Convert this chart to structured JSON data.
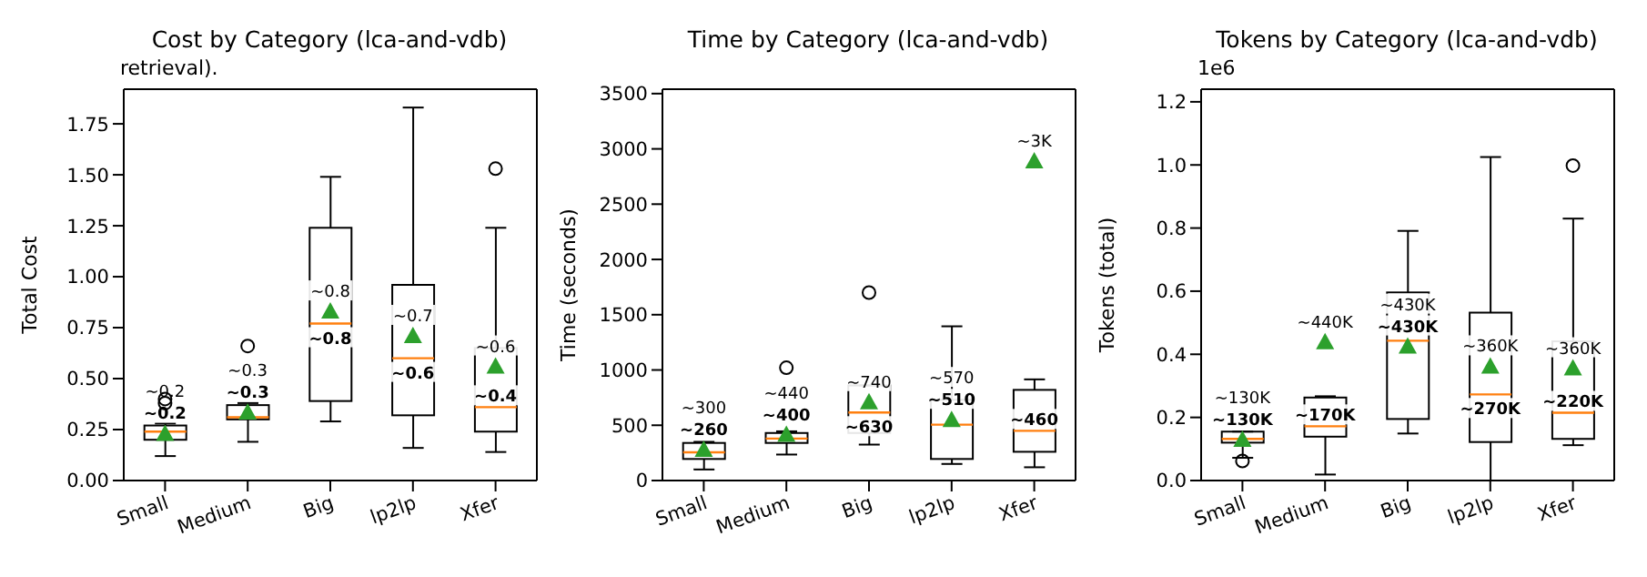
{
  "chart_data": [
    {
      "type": "box",
      "title": "Cost by Category (lca-and-vdb)",
      "ylabel": "Total Cost",
      "marker": "triangle",
      "categories": [
        "Small",
        "Medium",
        "Big",
        "lp2lp",
        "Xfer"
      ],
      "boxes": [
        {
          "low": 0.12,
          "q1": 0.2,
          "median": 0.24,
          "q3": 0.27,
          "high": 0.28,
          "mean": 0.23,
          "outliers": [
            0.38,
            0.4
          ]
        },
        {
          "low": 0.19,
          "q1": 0.3,
          "median": 0.31,
          "q3": 0.37,
          "high": 0.38,
          "mean": 0.335,
          "outliers": [
            0.66
          ]
        },
        {
          "low": 0.29,
          "q1": 0.39,
          "median": 0.77,
          "q3": 1.24,
          "high": 1.49,
          "mean": 0.83
        },
        {
          "low": 0.16,
          "q1": 0.32,
          "median": 0.6,
          "q3": 0.96,
          "high": 1.83,
          "mean": 0.71
        },
        {
          "low": 0.14,
          "q1": 0.24,
          "median": 0.36,
          "q3": 0.65,
          "high": 1.24,
          "mean": 0.56,
          "outliers": [
            1.53
          ]
        }
      ],
      "ylim": [
        0,
        1.92
      ],
      "yticks": [
        {
          "value": 0,
          "label": "0.00"
        },
        {
          "value": 0.25,
          "label": "0.25"
        },
        {
          "value": 0.5,
          "label": "0.50"
        },
        {
          "value": 0.75,
          "label": "0.75"
        },
        {
          "value": 1,
          "label": "1.00"
        },
        {
          "value": 1.25,
          "label": "1.25"
        },
        {
          "value": 1.5,
          "label": "1.50"
        },
        {
          "value": 1.75,
          "label": "1.75"
        }
      ],
      "annotations": [
        "~0.2",
        "~0.2",
        "~0.3",
        "~0.3",
        "~0.8",
        "~0.8",
        "~0.7",
        "~0.6",
        "~0.6",
        "~0.4",
        "retrieval)."
      ]
    },
    {
      "type": "box",
      "title": "Time by Category (lca-and-vdb)",
      "ylabel": "Time (seconds)",
      "marker": "triangle",
      "categories": [
        "Small",
        "Medium",
        "Big",
        "lp2lp",
        "Xfer"
      ],
      "boxes": [
        {
          "low": 100,
          "q1": 195,
          "median": 255,
          "q3": 340,
          "high": 350,
          "mean": 280
        },
        {
          "low": 235,
          "q1": 340,
          "median": 380,
          "q3": 430,
          "high": 445,
          "mean": 415,
          "outliers": [
            1020
          ]
        },
        {
          "low": 325,
          "q1": 430,
          "median": 615,
          "q3": 860,
          "high": 860,
          "mean": 710,
          "outliers": [
            1700
          ]
        },
        {
          "low": 150,
          "q1": 195,
          "median": 505,
          "q3": 730,
          "high": 1395,
          "mean": 550
        },
        {
          "low": 120,
          "q1": 260,
          "median": 450,
          "q3": 820,
          "high": 915,
          "mean": 2890
        }
      ],
      "ylim": [
        0,
        3540
      ],
      "yticks": [
        0,
        500,
        1000,
        1500,
        2000,
        2500,
        3000,
        3500
      ],
      "annotations": [
        "~300",
        "~260",
        "~440",
        "~400",
        "~740",
        "~630",
        "~570",
        "~510",
        "~3K",
        "~460"
      ]
    },
    {
      "type": "box",
      "title": "Tokens by Category (lca-and-vdb)",
      "ylabel": "Tokens (total)",
      "marker": "triangle",
      "categories": [
        "Small",
        "Medium",
        "Big",
        "lp2lp",
        "Xfer"
      ],
      "boxes": [
        {
          "low": 0.072,
          "q1": 0.12,
          "median": 0.132,
          "q3": 0.155,
          "high": 0.155,
          "mean": 0.13,
          "outliers": [
            0.062
          ]
        },
        {
          "low": 0.019,
          "q1": 0.139,
          "median": 0.172,
          "q3": 0.263,
          "high": 0.267,
          "mean": 0.439
        },
        {
          "low": 0.149,
          "q1": 0.195,
          "median": 0.443,
          "q3": 0.596,
          "high": 0.791,
          "mean": 0.425
        },
        {
          "low": 0,
          "q1": 0.122,
          "median": 0.273,
          "q3": 0.532,
          "high": 1.025,
          "mean": 0.362
        },
        {
          "low": 0.112,
          "q1": 0.132,
          "median": 0.215,
          "q3": 0.441,
          "high": 0.83,
          "mean": 0.356,
          "outliers": [
            0.998
          ]
        }
      ],
      "ylim": [
        0,
        1.24
      ],
      "yticks": [
        {
          "value": 0,
          "label": "0.0"
        },
        0.2,
        0.4,
        0.6,
        0.8,
        {
          "value": 1,
          "label": "1.0"
        },
        {
          "value": 1.2,
          "label": "1.2"
        }
      ],
      "annotations": [
        "~130K",
        "~130K",
        "~440K",
        "~170K",
        "~430K",
        "~430K",
        "~360K",
        "~270K",
        "~360K",
        "~220K",
        "1e6"
      ]
    }
  ]
}
